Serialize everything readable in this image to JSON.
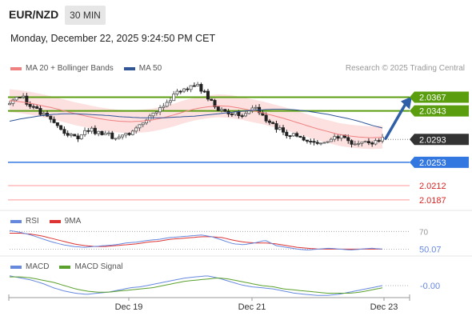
{
  "header": {
    "symbol": "EUR/NZD",
    "interval": "30 MIN",
    "datetime": "Monday, December 22, 2025 9:24:50 PM CET",
    "credit": "Research © 2025 Trading Central"
  },
  "colors": {
    "bollinger": "#f08080",
    "bollinger_fill": "#fde0e0",
    "ma50": "#2f5597",
    "resistance": "#5a9e0f",
    "support": "#3377e0",
    "target_line": "#ff9999",
    "candle_up": "#555555",
    "candle_down": "#222222",
    "rsi": "#6688dd",
    "rsi_ma": "#dd3333",
    "macd": "#6688dd",
    "macd_signal": "#5aa02c",
    "arrow": "#2f5fa7",
    "price_tag": "#333333"
  },
  "chart_data": [
    {
      "type": "candlestick",
      "title": "EUR/NZD",
      "series": [
        {
          "name": "MA 20 + Bollinger Bands",
          "values": [
            2.0361,
            2.0359,
            2.0356,
            2.0352,
            2.0348,
            2.0343,
            2.0338,
            2.0334,
            2.033,
            2.0327,
            2.0325,
            2.0324,
            2.0325,
            2.0327,
            2.0331,
            2.0336,
            2.0342,
            2.0347,
            2.035,
            2.0352,
            2.0351,
            2.0348,
            2.0344,
            2.034,
            2.0335,
            2.033,
            2.0324,
            2.0318,
            2.0312,
            2.0307,
            2.0302,
            2.0299,
            2.0297,
            2.0296,
            2.0297
          ]
        },
        {
          "name": "MA 50",
          "values": [
            2.0325,
            2.0329,
            2.0332,
            2.0335,
            2.0337,
            2.0338,
            2.0338,
            2.0337,
            2.0336,
            2.0335,
            2.0333,
            2.0332,
            2.0331,
            2.0331,
            2.0331,
            2.0332,
            2.0333,
            2.0334,
            2.0336,
            2.0338,
            2.034,
            2.0342,
            2.0344,
            2.0345,
            2.0346,
            2.0346,
            2.0345,
            2.0343,
            2.034,
            2.0337,
            2.0333,
            2.0329,
            2.0324,
            2.0318,
            2.0313
          ]
        }
      ],
      "bands": {
        "upper_offset": 0.002,
        "lower_offset": 0.002
      },
      "price_path": [
        2.0354,
        2.0372,
        2.0352,
        2.034,
        2.033,
        2.031,
        2.0302,
        2.0298,
        2.031,
        2.0305,
        2.03,
        2.0296,
        2.0302,
        2.0315,
        2.033,
        2.0345,
        2.036,
        2.0372,
        2.038,
        2.0393,
        2.037,
        2.035,
        2.0342,
        2.034,
        2.0338,
        2.0352,
        2.033,
        2.0315,
        2.0305,
        2.03,
        2.0292,
        2.0285,
        2.0284,
        2.0292,
        2.0302,
        2.0286,
        2.0284,
        2.029,
        2.0293
      ],
      "x_ticks": [
        "Dec 19",
        "Dec 21",
        "Dec 23"
      ],
      "last_price": "2.0293",
      "levels": [
        {
          "label": "2.0367",
          "value": 2.0367,
          "kind": "resistance",
          "tag": "filled"
        },
        {
          "label": "2.0343",
          "value": 2.0343,
          "kind": "resistance",
          "tag": "filled"
        },
        {
          "label": "2.0253",
          "value": 2.0253,
          "kind": "support",
          "tag": "filled"
        },
        {
          "label": "2.0212",
          "value": 2.0212,
          "kind": "target",
          "tag": "text"
        },
        {
          "label": "2.0187",
          "value": 2.0187,
          "kind": "target",
          "tag": "text"
        }
      ],
      "forecast_arrow": {
        "from": 2.0293,
        "to": 2.0367
      }
    },
    {
      "type": "line",
      "title": "RSI",
      "series": [
        {
          "name": "RSI",
          "values": [
            71,
            69,
            66,
            62,
            58,
            55,
            53,
            52,
            53,
            54,
            55,
            57,
            58,
            60,
            61,
            63,
            64,
            65,
            66,
            64,
            60,
            56,
            55,
            57,
            60,
            54,
            52,
            50,
            49,
            50,
            51,
            50,
            49,
            50,
            51,
            50
          ]
        },
        {
          "name": "9MA",
          "values": [
            68,
            68,
            67,
            65,
            62,
            59,
            56,
            54,
            53,
            53,
            54,
            55,
            56,
            58,
            59,
            61,
            62,
            63,
            64,
            64,
            63,
            60,
            58,
            57,
            57,
            56,
            54,
            52,
            51,
            50,
            50,
            50,
            50,
            50,
            50,
            50
          ]
        }
      ],
      "levels": [
        {
          "label": "70",
          "value": 70
        },
        {
          "label": "50",
          "value": 50
        }
      ],
      "last_value": "50.07",
      "ylim": [
        44,
        73
      ]
    },
    {
      "type": "line",
      "title": "MACD",
      "series": [
        {
          "name": "MACD",
          "values": [
            0.0009,
            0.0007,
            0.0005,
            0.0002,
            -0.0002,
            -0.0005,
            -0.0007,
            -0.0008,
            -0.0007,
            -0.0006,
            -0.0004,
            -0.0002,
            -0.0001,
            0.0001,
            0.0003,
            0.0005,
            0.0007,
            0.0008,
            0.0009,
            0.0007,
            0.0004,
            0.0001,
            -0.0001,
            -0.0002,
            -0.0003,
            -0.0005,
            -0.0007,
            -0.0008,
            -0.0009,
            -0.0009,
            -0.0008,
            -0.0006,
            -0.0004,
            -0.0002,
            0.0
          ]
        },
        {
          "name": "MACD Signal",
          "values": [
            0.0008,
            0.0008,
            0.0007,
            0.0005,
            0.0003,
            0.0,
            -0.0003,
            -0.0005,
            -0.0006,
            -0.0006,
            -0.0005,
            -0.0004,
            -0.0003,
            -0.0002,
            0.0,
            0.0002,
            0.0004,
            0.0005,
            0.0006,
            0.0007,
            0.0006,
            0.0004,
            0.0002,
            0.0,
            -0.0001,
            -0.0003,
            -0.0004,
            -0.0005,
            -0.0006,
            -0.0007,
            -0.0007,
            -0.0007,
            -0.0006,
            -0.0004,
            -0.0002
          ]
        }
      ],
      "last_value": "-0.00",
      "ylim": [
        -0.0011,
        0.0011
      ]
    }
  ]
}
